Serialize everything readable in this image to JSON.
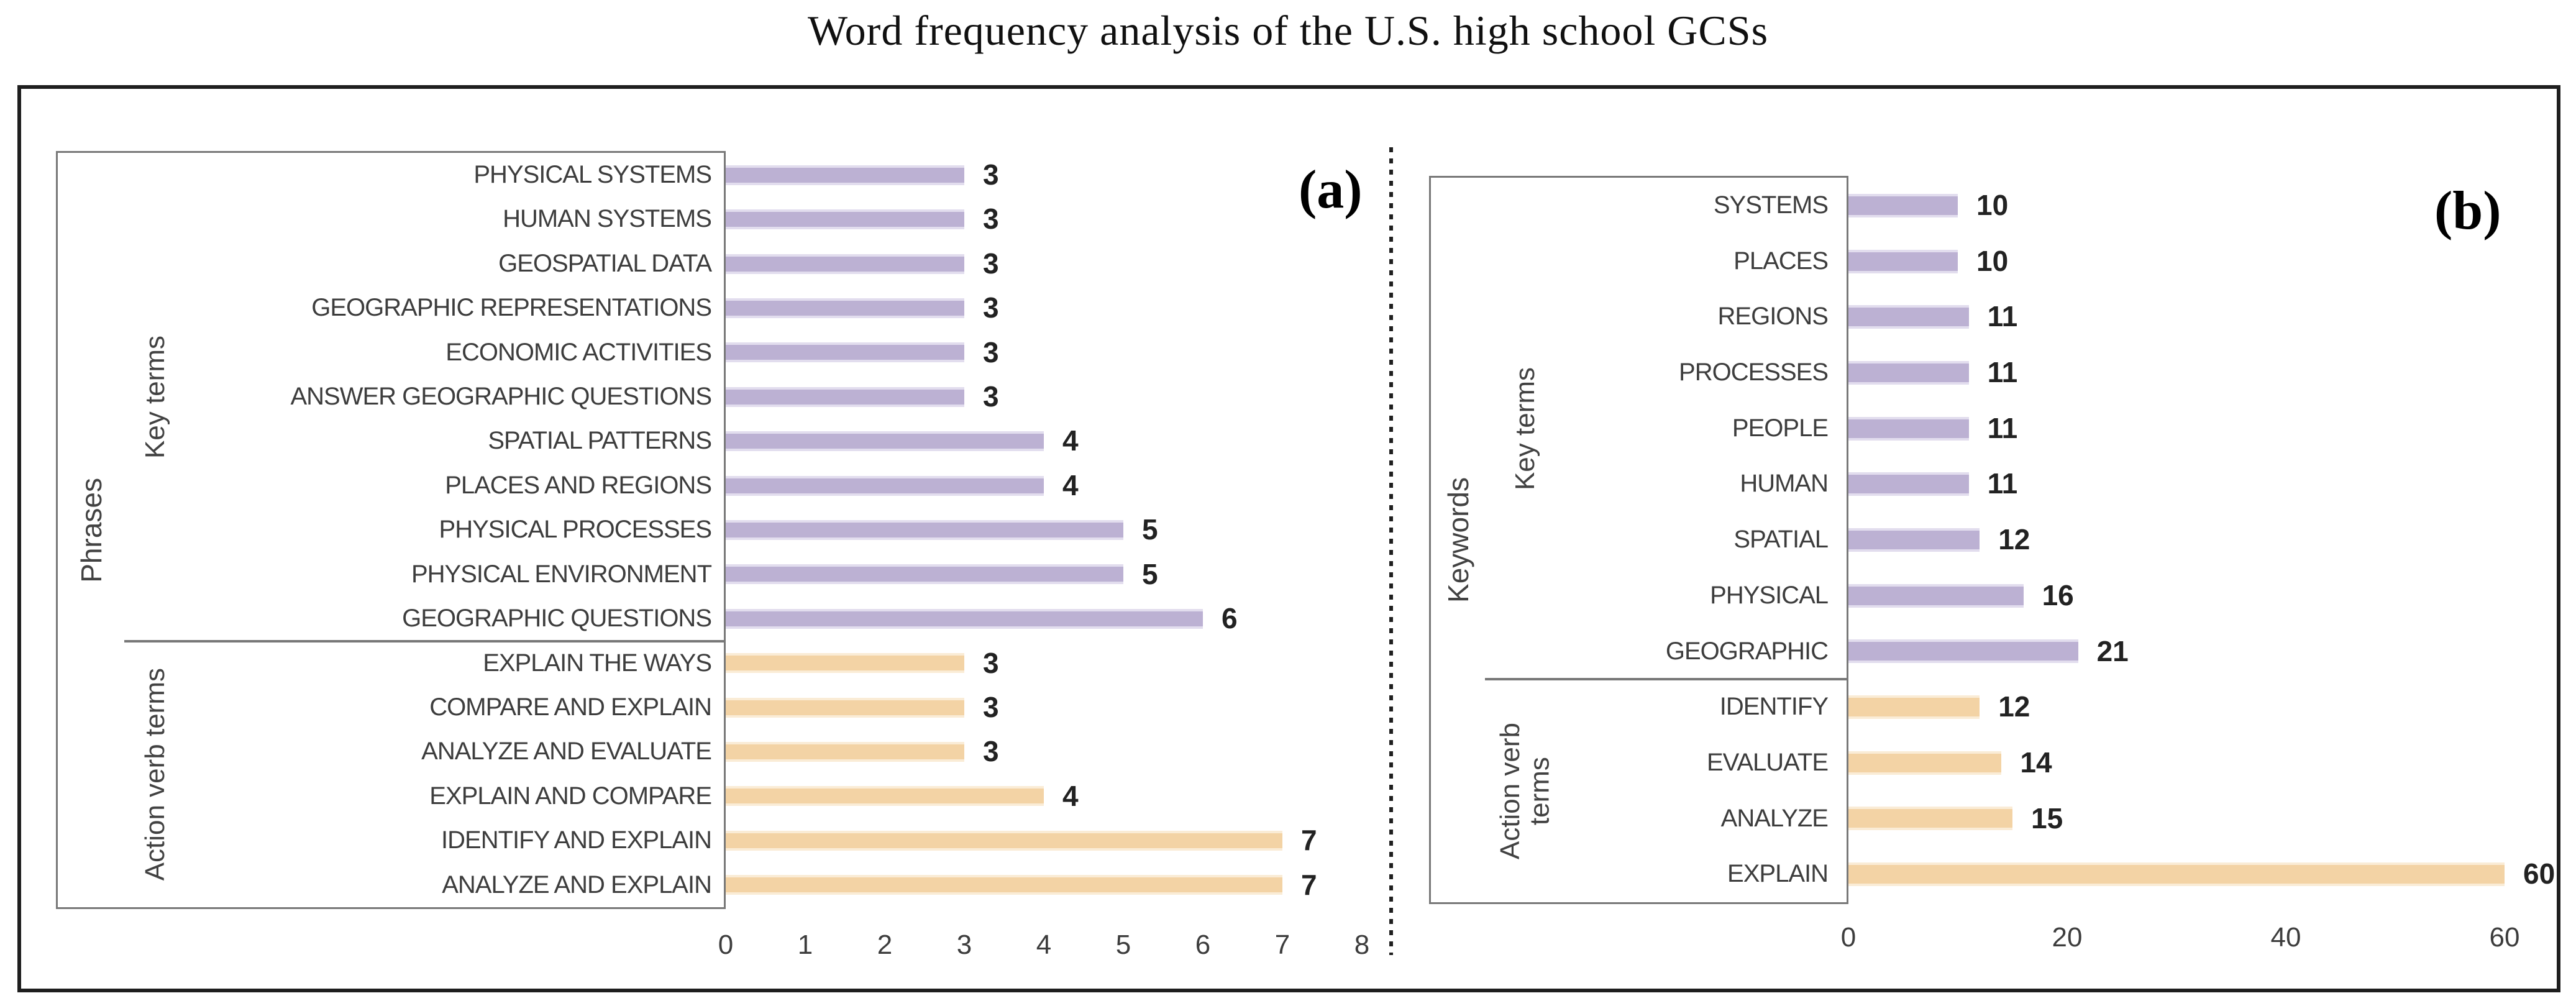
{
  "title": "Word frequency analysis of the U.S. high school GCSs",
  "colors": {
    "key_terms_bar": "#bcb1d3",
    "key_terms_bar_edge": "#e2ddee",
    "action_verb_bar": "#f3d3a5",
    "action_verb_bar_edge": "#faecd6",
    "grid_line_gray": "#787878",
    "outer_border": "#1e1e1e"
  },
  "chart_data": [
    {
      "type": "bar",
      "orientation": "horizontal",
      "panel_letter": "(a)",
      "axis_category_label": "Phrases",
      "value_axis_range": [
        0,
        8
      ],
      "x_ticks": [
        "0",
        "1",
        "2",
        "3",
        "4",
        "5",
        "6",
        "7",
        "8"
      ],
      "grid": false,
      "legend": "none",
      "groups": [
        {
          "name": "Key terms",
          "color_key": "key_terms_bar",
          "items": [
            {
              "label": "PHYSICAL SYSTEMS",
              "value": 3
            },
            {
              "label": "HUMAN SYSTEMS",
              "value": 3
            },
            {
              "label": "GEOSPATIAL DATA",
              "value": 3
            },
            {
              "label": "GEOGRAPHIC REPRESENTATIONS",
              "value": 3
            },
            {
              "label": "ECONOMIC ACTIVITIES",
              "value": 3
            },
            {
              "label": "ANSWER GEOGRAPHIC QUESTIONS",
              "value": 3
            },
            {
              "label": "SPATIAL PATTERNS",
              "value": 4
            },
            {
              "label": "PLACES AND REGIONS",
              "value": 4
            },
            {
              "label": "PHYSICAL PROCESSES",
              "value": 5
            },
            {
              "label": "PHYSICAL ENVIRONMENT",
              "value": 5
            },
            {
              "label": "GEOGRAPHIC QUESTIONS",
              "value": 6
            }
          ]
        },
        {
          "name": "Action verb terms",
          "color_key": "action_verb_bar",
          "items": [
            {
              "label": "EXPLAIN THE WAYS",
              "value": 3
            },
            {
              "label": "COMPARE AND EXPLAIN",
              "value": 3
            },
            {
              "label": "ANALYZE AND EVALUATE",
              "value": 3
            },
            {
              "label": "EXPLAIN AND COMPARE",
              "value": 4
            },
            {
              "label": "IDENTIFY AND EXPLAIN",
              "value": 7
            },
            {
              "label": "ANALYZE AND EXPLAIN",
              "value": 7
            }
          ]
        }
      ]
    },
    {
      "type": "bar",
      "orientation": "horizontal",
      "panel_letter": "(b)",
      "axis_category_label": "Keywords",
      "value_axis_range": [
        0,
        60
      ],
      "x_ticks": [
        "0",
        "20",
        "40",
        "60"
      ],
      "grid": false,
      "legend": "none",
      "groups": [
        {
          "name": "Key terms",
          "color_key": "key_terms_bar",
          "items": [
            {
              "label": "SYSTEMS",
              "value": 10
            },
            {
              "label": "PLACES",
              "value": 10
            },
            {
              "label": "REGIONS",
              "value": 11
            },
            {
              "label": "PROCESSES",
              "value": 11
            },
            {
              "label": "PEOPLE",
              "value": 11
            },
            {
              "label": "HUMAN",
              "value": 11
            },
            {
              "label": "SPATIAL",
              "value": 12
            },
            {
              "label": "PHYSICAL",
              "value": 16
            },
            {
              "label": "GEOGRAPHIC",
              "value": 21
            }
          ]
        },
        {
          "name": "Action verb terms",
          "name_lines": [
            "Action verb",
            "terms"
          ],
          "color_key": "action_verb_bar",
          "items": [
            {
              "label": "IDENTIFY",
              "value": 12
            },
            {
              "label": "EVALUATE",
              "value": 14
            },
            {
              "label": "ANALYZE",
              "value": 15
            },
            {
              "label": "EXPLAIN",
              "value": 60
            }
          ]
        }
      ]
    }
  ]
}
